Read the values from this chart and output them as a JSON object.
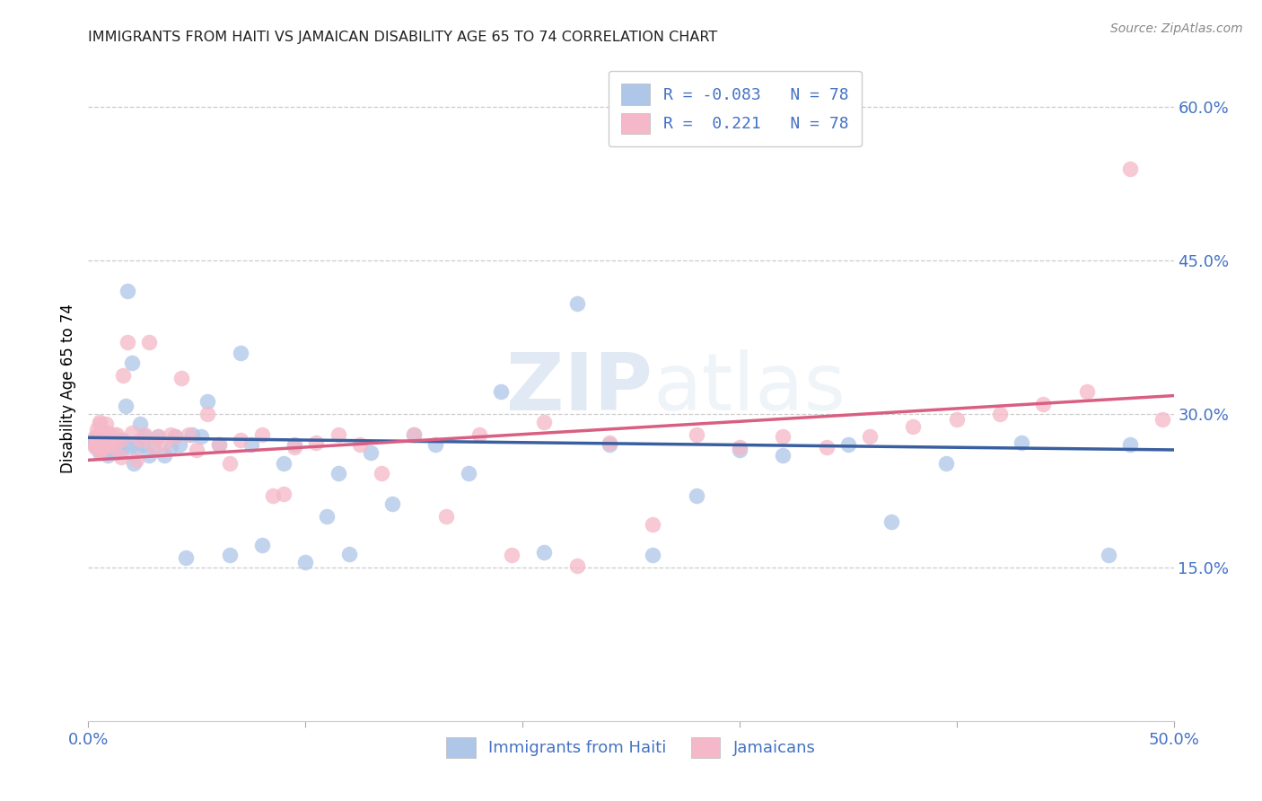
{
  "title": "IMMIGRANTS FROM HAITI VS JAMAICAN DISABILITY AGE 65 TO 74 CORRELATION CHART",
  "source": "Source: ZipAtlas.com",
  "ylabel": "Disability Age 65 to 74",
  "x_min": 0.0,
  "x_max": 0.5,
  "y_min": 0.0,
  "y_max": 0.65,
  "y_tick_labels_right": [
    "15.0%",
    "30.0%",
    "45.0%",
    "60.0%"
  ],
  "y_tick_vals_right": [
    0.15,
    0.3,
    0.45,
    0.6
  ],
  "legend_r_haiti": "-0.083",
  "legend_r_jamaican": " 0.221",
  "legend_n": "78",
  "haiti_color": "#aec6e8",
  "jamaican_color": "#f5b8c8",
  "haiti_line_color": "#3a5fa0",
  "jamaican_line_color": "#d95f82",
  "watermark_zip": "ZIP",
  "watermark_atlas": "atlas",
  "haiti_line_x0": 0.0,
  "haiti_line_x1": 0.5,
  "haiti_line_y0": 0.277,
  "haiti_line_y1": 0.265,
  "jam_line_x0": 0.0,
  "jam_line_x1": 0.5,
  "jam_line_y0": 0.255,
  "jam_line_y1": 0.318,
  "haiti_scatter_x": [
    0.003,
    0.003,
    0.003,
    0.004,
    0.004,
    0.004,
    0.005,
    0.005,
    0.005,
    0.005,
    0.005,
    0.005,
    0.006,
    0.006,
    0.007,
    0.007,
    0.008,
    0.008,
    0.009,
    0.01,
    0.01,
    0.01,
    0.012,
    0.012,
    0.013,
    0.014,
    0.015,
    0.016,
    0.017,
    0.018,
    0.019,
    0.02,
    0.021,
    0.022,
    0.024,
    0.025,
    0.026,
    0.028,
    0.03,
    0.032,
    0.035,
    0.038,
    0.04,
    0.042,
    0.045,
    0.048,
    0.052,
    0.055,
    0.06,
    0.065,
    0.07,
    0.075,
    0.08,
    0.09,
    0.095,
    0.1,
    0.11,
    0.115,
    0.12,
    0.13,
    0.14,
    0.15,
    0.16,
    0.175,
    0.19,
    0.21,
    0.225,
    0.24,
    0.26,
    0.28,
    0.3,
    0.32,
    0.35,
    0.37,
    0.395,
    0.43,
    0.47,
    0.48
  ],
  "haiti_scatter_y": [
    0.27,
    0.272,
    0.275,
    0.268,
    0.272,
    0.278,
    0.265,
    0.27,
    0.275,
    0.28,
    0.262,
    0.268,
    0.271,
    0.276,
    0.268,
    0.274,
    0.265,
    0.272,
    0.26,
    0.267,
    0.272,
    0.278,
    0.268,
    0.275,
    0.262,
    0.27,
    0.265,
    0.275,
    0.308,
    0.42,
    0.268,
    0.35,
    0.252,
    0.268,
    0.29,
    0.27,
    0.278,
    0.26,
    0.268,
    0.278,
    0.26,
    0.268,
    0.278,
    0.27,
    0.16,
    0.28,
    0.278,
    0.312,
    0.27,
    0.162,
    0.36,
    0.27,
    0.172,
    0.252,
    0.27,
    0.155,
    0.2,
    0.242,
    0.163,
    0.262,
    0.212,
    0.28,
    0.27,
    0.242,
    0.322,
    0.165,
    0.408,
    0.27,
    0.162,
    0.22,
    0.265,
    0.26,
    0.27,
    0.195,
    0.252,
    0.272,
    0.162,
    0.27
  ],
  "jamaican_scatter_x": [
    0.003,
    0.003,
    0.004,
    0.004,
    0.005,
    0.005,
    0.005,
    0.005,
    0.006,
    0.006,
    0.007,
    0.007,
    0.008,
    0.008,
    0.009,
    0.01,
    0.01,
    0.012,
    0.013,
    0.015,
    0.016,
    0.018,
    0.02,
    0.022,
    0.024,
    0.026,
    0.028,
    0.03,
    0.032,
    0.035,
    0.038,
    0.04,
    0.043,
    0.046,
    0.05,
    0.055,
    0.06,
    0.065,
    0.07,
    0.08,
    0.085,
    0.09,
    0.095,
    0.105,
    0.115,
    0.125,
    0.135,
    0.15,
    0.165,
    0.18,
    0.195,
    0.21,
    0.225,
    0.24,
    0.26,
    0.28,
    0.3,
    0.32,
    0.34,
    0.36,
    0.38,
    0.4,
    0.42,
    0.44,
    0.46,
    0.48,
    0.495,
    0.003,
    0.004,
    0.005,
    0.005,
    0.006,
    0.007,
    0.008,
    0.009,
    0.01,
    0.012,
    0.015
  ],
  "jamaican_scatter_y": [
    0.27,
    0.278,
    0.272,
    0.285,
    0.27,
    0.278,
    0.292,
    0.265,
    0.272,
    0.282,
    0.268,
    0.278,
    0.275,
    0.29,
    0.282,
    0.27,
    0.278,
    0.268,
    0.28,
    0.275,
    0.338,
    0.37,
    0.282,
    0.255,
    0.275,
    0.28,
    0.37,
    0.268,
    0.278,
    0.27,
    0.28,
    0.278,
    0.335,
    0.28,
    0.265,
    0.3,
    0.27,
    0.252,
    0.275,
    0.28,
    0.22,
    0.222,
    0.268,
    0.272,
    0.28,
    0.27,
    0.242,
    0.28,
    0.2,
    0.28,
    0.162,
    0.292,
    0.152,
    0.272,
    0.192,
    0.28,
    0.268,
    0.278,
    0.268,
    0.278,
    0.288,
    0.295,
    0.3,
    0.31,
    0.322,
    0.54,
    0.295,
    0.268,
    0.275,
    0.278,
    0.29,
    0.265,
    0.272,
    0.28,
    0.275,
    0.272,
    0.28,
    0.258
  ]
}
